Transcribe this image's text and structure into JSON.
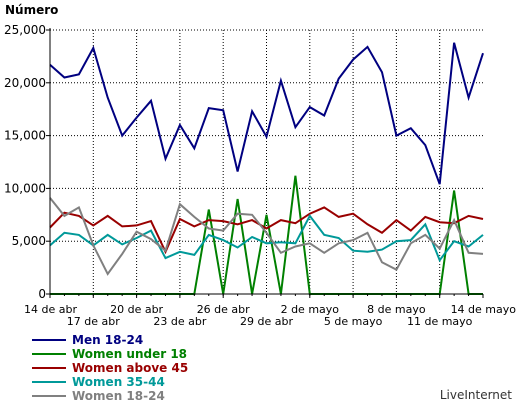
{
  "chart_data": {
    "type": "line",
    "ylabel": "Número",
    "ylim": [
      0,
      25000
    ],
    "y_ticks": [
      "0",
      "5,000",
      "10,000",
      "15,000",
      "20,000",
      "25,000"
    ],
    "x_tick_labels": [
      {
        "label": "14 de abr",
        "i": 0,
        "row": 1
      },
      {
        "label": "17 de abr",
        "i": 3,
        "row": 2
      },
      {
        "label": "20 de abr",
        "i": 6,
        "row": 1
      },
      {
        "label": "23 de abr",
        "i": 9,
        "row": 2
      },
      {
        "label": "26 de abr",
        "i": 12,
        "row": 1
      },
      {
        "label": "29 de abr",
        "i": 15,
        "row": 2
      },
      {
        "label": "2 de mayo",
        "i": 18,
        "row": 1
      },
      {
        "label": "5 de mayo",
        "i": 21,
        "row": 2
      },
      {
        "label": "8 de mayo",
        "i": 24,
        "row": 1
      },
      {
        "label": "11 de mayo",
        "i": 27,
        "row": 2
      },
      {
        "label": "14 de mayo",
        "i": 30,
        "row": 1
      }
    ],
    "series": [
      {
        "name": "Men 18-24",
        "color": "#000080",
        "values": [
          21700,
          20500,
          20800,
          23300,
          18600,
          15000,
          16700,
          18300,
          12800,
          16000,
          13800,
          17600,
          17400,
          11600,
          17300,
          14900,
          20200,
          15800,
          17700,
          16900,
          20400,
          22200,
          23400,
          21000,
          15000,
          15700,
          14100,
          10400,
          23800,
          18600,
          22800
        ]
      },
      {
        "name": "Women under 18",
        "color": "#008000",
        "values": [
          0,
          0,
          0,
          0,
          0,
          0,
          0,
          0,
          0,
          0,
          0,
          8000,
          0,
          9000,
          0,
          7500,
          0,
          11200,
          0,
          0,
          0,
          0,
          0,
          0,
          0,
          0,
          0,
          0,
          9800,
          0,
          0
        ]
      },
      {
        "name": "Women above 45",
        "color": "#990000",
        "values": [
          6300,
          7700,
          7400,
          6500,
          7400,
          6400,
          6500,
          6900,
          4000,
          7100,
          6400,
          7000,
          6900,
          6600,
          7000,
          6200,
          7000,
          6700,
          7600,
          8200,
          7300,
          7600,
          6600,
          5800,
          7000,
          6000,
          7300,
          6800,
          6700,
          7400,
          7100
        ]
      },
      {
        "name": "Women 35-44",
        "color": "#009999",
        "values": [
          4600,
          5800,
          5600,
          4600,
          5600,
          4700,
          5300,
          6000,
          3400,
          4000,
          3700,
          5600,
          5100,
          4400,
          5400,
          4800,
          4900,
          4800,
          7400,
          5600,
          5300,
          4100,
          4000,
          4200,
          5000,
          5100,
          6600,
          3200,
          5000,
          4500,
          5600
        ]
      },
      {
        "name": "Women 18-24",
        "color": "#808080",
        "values": [
          9100,
          7400,
          8200,
          4600,
          1900,
          3800,
          5900,
          5200,
          4100,
          8500,
          7300,
          6200,
          6000,
          7600,
          7500,
          5800,
          3900,
          4500,
          4800,
          3900,
          4800,
          5100,
          5800,
          3000,
          2300,
          4800,
          5600,
          4300,
          7000,
          3900,
          3800
        ]
      }
    ]
  },
  "brand": "LiveInternet"
}
